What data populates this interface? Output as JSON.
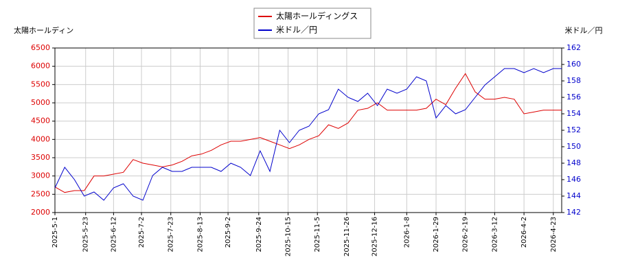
{
  "chart_data": {
    "type": "line",
    "y_label": "太陽ホールディン",
    "y2_label": "米ドル／円",
    "legend": "top",
    "grid": true,
    "x": [
      "2025-5-1",
      "2025-5-8",
      "2025-5-15",
      "2025-5-22",
      "2025-5-29",
      "2025-6-5",
      "2025-6-12",
      "2025-6-19",
      "2025-6-26",
      "2025-7-3",
      "2025-7-10",
      "2025-7-17",
      "2025-7-24",
      "2025-7-31",
      "2025-8-7",
      "2025-8-14",
      "2025-8-21",
      "2025-8-28",
      "2025-9-4",
      "2025-9-11",
      "2025-9-18",
      "2025-9-25",
      "2025-10-2",
      "2025-10-9",
      "2025-10-16",
      "2025-10-23",
      "2025-10-30",
      "2025-11-6",
      "2025-11-13",
      "2025-11-20",
      "2025-11-27",
      "2025-12-4",
      "2025-12-11",
      "2025-12-18",
      "2025-12-25",
      "2026-1-1",
      "2026-1-8",
      "2026-1-15",
      "2026-1-22",
      "2026-1-29",
      "2026-2-5",
      "2026-2-12",
      "2026-2-19",
      "2026-2-26",
      "2026-3-5",
      "2026-3-12",
      "2026-3-19",
      "2026-3-26",
      "2026-4-2",
      "2026-4-9",
      "2026-4-16",
      "2026-4-23",
      "2026-4-29"
    ],
    "series": [
      {
        "name": "太陽ホールディングス",
        "color": "#dd0000",
        "axis": "y",
        "values": [
          2700,
          2550,
          2600,
          2600,
          3000,
          3000,
          3050,
          3100,
          3450,
          3350,
          3300,
          3250,
          3300,
          3400,
          3550,
          3600,
          3700,
          3850,
          3950,
          3950,
          4000,
          4050,
          3950,
          3850,
          3750,
          3850,
          4000,
          4100,
          4400,
          4300,
          4450,
          4800,
          4850,
          5000,
          4800,
          4800,
          4800,
          4800,
          4850,
          5100,
          4950,
          5400,
          5800,
          5300,
          5100,
          5100,
          5150,
          5100,
          4700,
          4750,
          4800,
          4800,
          4800
        ]
      },
      {
        "name": "米ドル／円",
        "color": "#0000cc",
        "axis": "y2",
        "values": [
          145,
          147.5,
          146,
          144,
          144.5,
          143.5,
          145,
          145.5,
          144,
          143.5,
          146.5,
          147.5,
          147,
          147,
          147.5,
          147.5,
          147.5,
          147,
          148,
          147.5,
          146.5,
          149.5,
          147,
          152,
          150.5,
          152,
          152.5,
          154,
          154.5,
          157,
          156,
          155.5,
          156.5,
          155,
          157,
          156.5,
          157,
          158.5,
          158,
          153.5,
          155,
          154,
          154.5,
          156,
          157.5,
          158.5,
          159.5,
          159.5,
          159,
          159.5,
          159,
          159.5,
          159.5
        ]
      }
    ],
    "xlim": [
      "2025-5-1",
      "2026-4-29"
    ],
    "xticks": [
      "2025-5-1",
      "2025-5-23",
      "2025-6-12",
      "2025-7-2",
      "2025-7-23",
      "2025-8-13",
      "2025-9-2",
      "2025-9-24",
      "2025-10-15",
      "2025-11-5",
      "2025-11-26",
      "2025-12-16",
      "2026-1-8",
      "2026-1-29",
      "2026-2-19",
      "2026-3-12",
      "2026-4-2",
      "2026-4-23"
    ],
    "ylim": [
      2000,
      6500
    ],
    "yticks": [
      2000,
      2500,
      3000,
      3500,
      4000,
      4500,
      5000,
      5500,
      6000,
      6500
    ],
    "y2lim": [
      142,
      162
    ],
    "y2ticks": [
      142,
      144,
      146,
      148,
      150,
      152,
      154,
      156,
      158,
      160,
      162
    ]
  }
}
